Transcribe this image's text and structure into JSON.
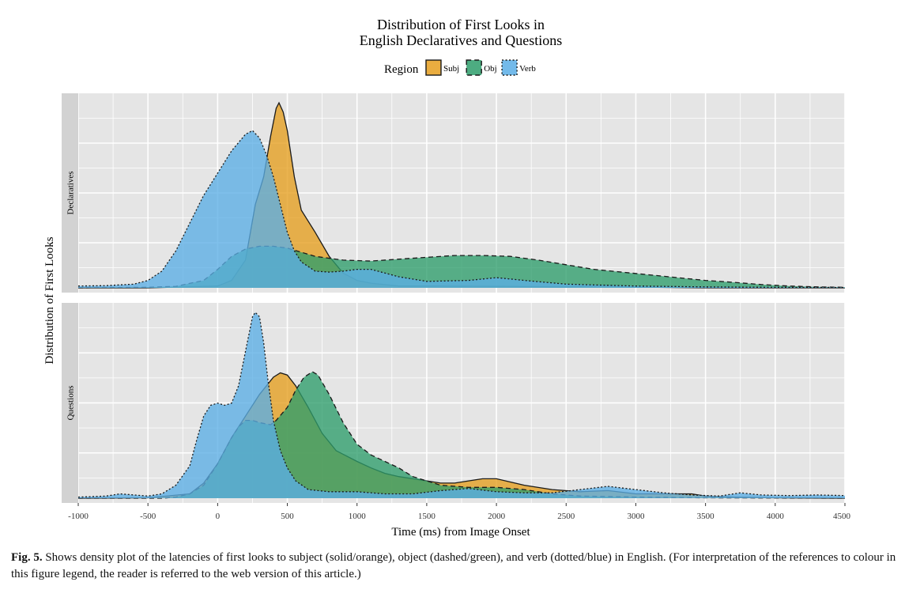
{
  "chart_data": {
    "type": "area",
    "title_lines": [
      "Distribution of First Looks in",
      "English Declaratives and Questions"
    ],
    "xlabel": "Time (ms) from Image Onset",
    "ylabel": "Distribution of First Looks",
    "xlim": [
      -1000,
      4500
    ],
    "xticks": [
      -1000,
      -500,
      0,
      500,
      1000,
      1500,
      2000,
      2500,
      3000,
      3500,
      4000,
      4500
    ],
    "xtick_labels": [
      "-1000",
      "-500",
      "0",
      "500",
      "1000",
      "1500",
      "2000",
      "2500",
      "3000",
      "3500",
      "4000",
      "4500"
    ],
    "legend": {
      "title": "Region",
      "placement": "top-center",
      "entries": [
        {
          "label": "Subj",
          "color": "#E69F1F",
          "line": "solid"
        },
        {
          "label": "Obj",
          "color": "#2E9E6B",
          "line": "dashed"
        },
        {
          "label": "Verb",
          "color": "#5BAEE6",
          "line": "dotted"
        }
      ]
    },
    "grid": true,
    "panels": [
      {
        "label": "Declaratives",
        "series": [
          {
            "name": "Subj",
            "color": "#E69F1F",
            "line": "solid",
            "points": [
              [
                -1000,
                0
              ],
              [
                -500,
                0
              ],
              [
                0,
                0.01
              ],
              [
                100,
                0.04
              ],
              [
                200,
                0.15
              ],
              [
                270,
                0.45
              ],
              [
                330,
                0.6
              ],
              [
                380,
                0.82
              ],
              [
                420,
                0.97
              ],
              [
                440,
                1.0
              ],
              [
                470,
                0.95
              ],
              [
                500,
                0.85
              ],
              [
                550,
                0.6
              ],
              [
                600,
                0.42
              ],
              [
                700,
                0.3
              ],
              [
                800,
                0.17
              ],
              [
                900,
                0.08
              ],
              [
                1000,
                0.04
              ],
              [
                1100,
                0.025
              ],
              [
                1300,
                0.01
              ],
              [
                1500,
                0.01
              ],
              [
                2000,
                0.008
              ],
              [
                2500,
                0.005
              ],
              [
                2800,
                0.012
              ],
              [
                2900,
                0.005
              ],
              [
                3500,
                0
              ],
              [
                4500,
                0
              ]
            ]
          },
          {
            "name": "Obj",
            "color": "#2E9E6B",
            "line": "dashed",
            "points": [
              [
                -1000,
                0
              ],
              [
                -500,
                0.003
              ],
              [
                -300,
                0.008
              ],
              [
                -100,
                0.04
              ],
              [
                0,
                0.1
              ],
              [
                100,
                0.17
              ],
              [
                200,
                0.21
              ],
              [
                300,
                0.225
              ],
              [
                400,
                0.225
              ],
              [
                500,
                0.215
              ],
              [
                700,
                0.17
              ],
              [
                900,
                0.15
              ],
              [
                1100,
                0.145
              ],
              [
                1300,
                0.155
              ],
              [
                1500,
                0.165
              ],
              [
                1700,
                0.175
              ],
              [
                1900,
                0.175
              ],
              [
                2100,
                0.17
              ],
              [
                2300,
                0.15
              ],
              [
                2500,
                0.125
              ],
              [
                2700,
                0.1
              ],
              [
                2900,
                0.085
              ],
              [
                3100,
                0.07
              ],
              [
                3300,
                0.055
              ],
              [
                3500,
                0.04
              ],
              [
                3700,
                0.03
              ],
              [
                3900,
                0.018
              ],
              [
                4100,
                0.01
              ],
              [
                4300,
                0.005
              ],
              [
                4500,
                0.003
              ]
            ]
          },
          {
            "name": "Verb",
            "color": "#5BAEE6",
            "line": "dotted",
            "points": [
              [
                -1000,
                0.01
              ],
              [
                -800,
                0.012
              ],
              [
                -600,
                0.02
              ],
              [
                -500,
                0.04
              ],
              [
                -400,
                0.09
              ],
              [
                -300,
                0.2
              ],
              [
                -200,
                0.35
              ],
              [
                -100,
                0.5
              ],
              [
                0,
                0.62
              ],
              [
                100,
                0.74
              ],
              [
                200,
                0.83
              ],
              [
                250,
                0.85
              ],
              [
                300,
                0.81
              ],
              [
                350,
                0.72
              ],
              [
                400,
                0.6
              ],
              [
                450,
                0.45
              ],
              [
                500,
                0.3
              ],
              [
                550,
                0.2
              ],
              [
                600,
                0.14
              ],
              [
                700,
                0.09
              ],
              [
                800,
                0.085
              ],
              [
                900,
                0.09
              ],
              [
                1000,
                0.1
              ],
              [
                1100,
                0.1
              ],
              [
                1200,
                0.08
              ],
              [
                1300,
                0.06
              ],
              [
                1500,
                0.035
              ],
              [
                1800,
                0.04
              ],
              [
                2000,
                0.055
              ],
              [
                2200,
                0.04
              ],
              [
                2500,
                0.02
              ],
              [
                3000,
                0.01
              ],
              [
                3500,
                0.005
              ],
              [
                4000,
                0.003
              ],
              [
                4500,
                0.002
              ]
            ]
          }
        ]
      },
      {
        "label": "Questions",
        "series": [
          {
            "name": "Subj",
            "color": "#E69F1F",
            "line": "solid",
            "points": [
              [
                -1000,
                0
              ],
              [
                -500,
                0.002
              ],
              [
                -200,
                0.02
              ],
              [
                -100,
                0.07
              ],
              [
                0,
                0.16
              ],
              [
                100,
                0.28
              ],
              [
                200,
                0.38
              ],
              [
                300,
                0.48
              ],
              [
                400,
                0.56
              ],
              [
                450,
                0.58
              ],
              [
                500,
                0.57
              ],
              [
                560,
                0.52
              ],
              [
                650,
                0.42
              ],
              [
                750,
                0.3
              ],
              [
                850,
                0.22
              ],
              [
                1000,
                0.17
              ],
              [
                1100,
                0.14
              ],
              [
                1200,
                0.115
              ],
              [
                1300,
                0.1
              ],
              [
                1400,
                0.09
              ],
              [
                1500,
                0.08
              ],
              [
                1600,
                0.07
              ],
              [
                1700,
                0.07
              ],
              [
                1800,
                0.08
              ],
              [
                1900,
                0.09
              ],
              [
                2000,
                0.09
              ],
              [
                2100,
                0.075
              ],
              [
                2200,
                0.06
              ],
              [
                2400,
                0.04
              ],
              [
                2600,
                0.03
              ],
              [
                2800,
                0.035
              ],
              [
                3000,
                0.02
              ],
              [
                3200,
                0.02
              ],
              [
                3400,
                0.02
              ],
              [
                3500,
                0.01
              ],
              [
                3700,
                0.005
              ],
              [
                4000,
                0.002
              ],
              [
                4500,
                0
              ]
            ]
          },
          {
            "name": "Obj",
            "color": "#2E9E6B",
            "line": "dashed",
            "points": [
              [
                -1000,
                0
              ],
              [
                -400,
                0
              ],
              [
                -300,
                0.005
              ],
              [
                -200,
                0.02
              ],
              [
                -100,
                0.06
              ],
              [
                0,
                0.16
              ],
              [
                100,
                0.28
              ],
              [
                150,
                0.33
              ],
              [
                200,
                0.36
              ],
              [
                250,
                0.36
              ],
              [
                300,
                0.35
              ],
              [
                380,
                0.34
              ],
              [
                420,
                0.36
              ],
              [
                500,
                0.42
              ],
              [
                560,
                0.5
              ],
              [
                620,
                0.56
              ],
              [
                680,
                0.585
              ],
              [
                720,
                0.57
              ],
              [
                800,
                0.48
              ],
              [
                900,
                0.35
              ],
              [
                1000,
                0.25
              ],
              [
                1100,
                0.2
              ],
              [
                1200,
                0.17
              ],
              [
                1300,
                0.14
              ],
              [
                1400,
                0.1
              ],
              [
                1500,
                0.08
              ],
              [
                1600,
                0.06
              ],
              [
                1800,
                0.05
              ],
              [
                2000,
                0.05
              ],
              [
                2200,
                0.04
              ],
              [
                2400,
                0.02
              ],
              [
                2600,
                0.01
              ],
              [
                3000,
                0.005
              ],
              [
                3500,
                0.002
              ],
              [
                4500,
                0
              ]
            ]
          },
          {
            "name": "Verb",
            "color": "#5BAEE6",
            "line": "dotted",
            "points": [
              [
                -1000,
                0.005
              ],
              [
                -800,
                0.01
              ],
              [
                -700,
                0.02
              ],
              [
                -600,
                0.015
              ],
              [
                -500,
                0.01
              ],
              [
                -400,
                0.02
              ],
              [
                -300,
                0.06
              ],
              [
                -200,
                0.15
              ],
              [
                -150,
                0.27
              ],
              [
                -100,
                0.38
              ],
              [
                -50,
                0.43
              ],
              [
                0,
                0.44
              ],
              [
                50,
                0.43
              ],
              [
                100,
                0.44
              ],
              [
                150,
                0.52
              ],
              [
                200,
                0.68
              ],
              [
                250,
                0.84
              ],
              [
                270,
                0.86
              ],
              [
                300,
                0.84
              ],
              [
                330,
                0.72
              ],
              [
                360,
                0.55
              ],
              [
                400,
                0.36
              ],
              [
                450,
                0.22
              ],
              [
                500,
                0.14
              ],
              [
                560,
                0.08
              ],
              [
                650,
                0.04
              ],
              [
                800,
                0.03
              ],
              [
                1000,
                0.03
              ],
              [
                1200,
                0.02
              ],
              [
                1400,
                0.02
              ],
              [
                1600,
                0.035
              ],
              [
                1800,
                0.045
              ],
              [
                2000,
                0.03
              ],
              [
                2200,
                0.025
              ],
              [
                2400,
                0.025
              ],
              [
                2600,
                0.04
              ],
              [
                2800,
                0.055
              ],
              [
                3000,
                0.04
              ],
              [
                3200,
                0.025
              ],
              [
                3400,
                0.015
              ],
              [
                3600,
                0.01
              ],
              [
                3750,
                0.025
              ],
              [
                3900,
                0.015
              ],
              [
                4100,
                0.012
              ],
              [
                4300,
                0.015
              ],
              [
                4500,
                0.012
              ]
            ]
          }
        ]
      }
    ]
  },
  "caption": {
    "label": "Fig. 5.",
    "text": " Shows density plot of the latencies of first looks to subject (solid/orange), object (dashed/green), and verb (dotted/blue) in English. (For interpretation of the references to colour in this figure legend, the reader is referred to the web version of this article.)"
  }
}
